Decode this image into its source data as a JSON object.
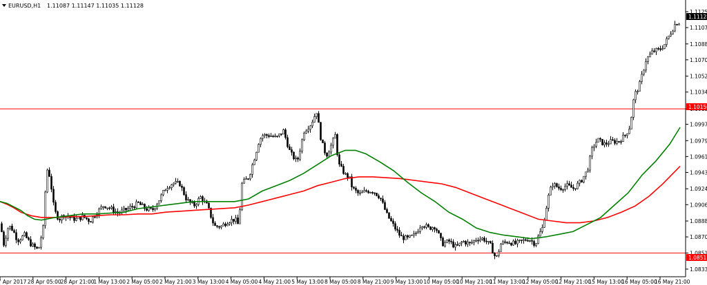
{
  "header": {
    "symbol": "EURUSD,H1",
    "ohlc": "1.11087 1.11147 1.11035 1.11128"
  },
  "price_axis": {
    "ticks": [
      "1.11250",
      "1.11070",
      "1.10885",
      "1.10705",
      "1.10520",
      "1.10340",
      "1.10150",
      "1.09975",
      "1.09790",
      "1.09610",
      "1.09430",
      "1.09245",
      "1.09065",
      "1.08880",
      "1.08700",
      "1.08517",
      "1.08335"
    ],
    "current_price_label": "1.11128",
    "level_labels": [
      "1.10150",
      "1.08517"
    ]
  },
  "time_axis": {
    "labels": [
      "27 Apr 2017",
      "28 Apr 05:00",
      "28 Apr 21:00",
      "1 May 13:00",
      "2 May 05:00",
      "2 May 21:00",
      "3 May 13:00",
      "4 May 05:00",
      "4 May 21:00",
      "5 May 13:00",
      "8 May 05:00",
      "8 May 21:00",
      "9 May 13:00",
      "10 May 05:00",
      "10 May 21:00",
      "11 May 13:00",
      "12 May 05:00",
      "12 May 21:00",
      "15 May 13:00",
      "16 May 05:00",
      "16 May 21:00"
    ]
  },
  "colors": {
    "background": "#ffffff",
    "candle_body": "#000000",
    "horizontal_level": "#ff0000",
    "ma_fast": "#008000",
    "ma_slow": "#ff0000",
    "price_label_bg": "#000000",
    "level_label_bg": "#ff0000"
  },
  "chart_data": {
    "type": "candlestick",
    "symbol": "EURUSD",
    "timeframe": "H1",
    "ylim": [
      1.0828,
      1.1132
    ],
    "horizontal_levels": [
      1.1015,
      1.08517
    ],
    "price_path": [
      [
        0,
        1.0885
      ],
      [
        5,
        1.0862
      ],
      [
        12,
        1.0883
      ],
      [
        18,
        1.0878
      ],
      [
        25,
        1.0866
      ],
      [
        35,
        1.0872
      ],
      [
        45,
        1.0861
      ],
      [
        55,
        1.0855
      ],
      [
        62,
        1.088
      ],
      [
        67,
        1.0948
      ],
      [
        72,
        1.0938
      ],
      [
        78,
        1.09
      ],
      [
        85,
        1.089
      ],
      [
        92,
        1.0895
      ],
      [
        100,
        1.0892
      ],
      [
        110,
        1.089
      ],
      [
        120,
        1.0893
      ],
      [
        130,
        1.0888
      ],
      [
        140,
        1.0898
      ],
      [
        150,
        1.0906
      ],
      [
        160,
        1.0902
      ],
      [
        170,
        1.0897
      ],
      [
        180,
        1.09
      ],
      [
        190,
        1.0904
      ],
      [
        200,
        1.0908
      ],
      [
        210,
        1.0902
      ],
      [
        220,
        1.09
      ],
      [
        230,
        1.0912
      ],
      [
        240,
        1.0926
      ],
      [
        250,
        1.0931
      ],
      [
        260,
        1.093
      ],
      [
        270,
        1.0912
      ],
      [
        280,
        1.0905
      ],
      [
        290,
        1.0915
      ],
      [
        300,
        1.0905
      ],
      [
        310,
        1.0882
      ],
      [
        320,
        1.0882
      ],
      [
        330,
        1.0888
      ],
      [
        340,
        1.089
      ],
      [
        345,
        1.0883
      ],
      [
        350,
        1.093
      ],
      [
        360,
        1.0938
      ],
      [
        370,
        1.0965
      ],
      [
        375,
        1.098
      ],
      [
        380,
        1.0985
      ],
      [
        390,
        1.0985
      ],
      [
        400,
        1.0982
      ],
      [
        410,
        1.099
      ],
      [
        420,
        1.0965
      ],
      [
        430,
        1.0955
      ],
      [
        440,
        1.099
      ],
      [
        450,
        1.0998
      ],
      [
        458,
        1.1012
      ],
      [
        465,
        1.0978
      ],
      [
        472,
        1.0962
      ],
      [
        480,
        1.0975
      ],
      [
        485,
        1.0985
      ],
      [
        490,
        1.0952
      ],
      [
        500,
        1.094
      ],
      [
        505,
        1.0938
      ],
      [
        510,
        1.0925
      ],
      [
        520,
        1.0918
      ],
      [
        530,
        1.0922
      ],
      [
        540,
        1.0922
      ],
      [
        550,
        1.0915
      ],
      [
        560,
        1.0895
      ],
      [
        570,
        1.0882
      ],
      [
        580,
        1.087
      ],
      [
        590,
        1.0868
      ],
      [
        600,
        1.0872
      ],
      [
        610,
        1.0885
      ],
      [
        620,
        1.088
      ],
      [
        630,
        1.0882
      ],
      [
        640,
        1.0862
      ],
      [
        650,
        1.0865
      ],
      [
        660,
        1.0858
      ],
      [
        670,
        1.0865
      ],
      [
        680,
        1.0862
      ],
      [
        690,
        1.0868
      ],
      [
        700,
        1.0868
      ],
      [
        710,
        1.086
      ],
      [
        718,
        1.0845
      ],
      [
        725,
        1.0862
      ],
      [
        735,
        1.0865
      ],
      [
        745,
        1.0862
      ],
      [
        755,
        1.0865
      ],
      [
        765,
        1.0868
      ],
      [
        775,
        1.0862
      ],
      [
        780,
        1.0872
      ],
      [
        785,
        1.088
      ],
      [
        790,
        1.09
      ],
      [
        795,
        1.092
      ],
      [
        800,
        1.093
      ],
      [
        810,
        1.0925
      ],
      [
        820,
        1.0928
      ],
      [
        830,
        1.0925
      ],
      [
        840,
        1.0932
      ],
      [
        850,
        1.0945
      ],
      [
        858,
        1.0972
      ],
      [
        865,
        1.098
      ],
      [
        875,
        1.0975
      ],
      [
        885,
        1.0978
      ],
      [
        895,
        1.0978
      ],
      [
        905,
        1.0985
      ],
      [
        912,
        1.0995
      ],
      [
        918,
        1.103
      ],
      [
        925,
        1.104
      ],
      [
        930,
        1.1055
      ],
      [
        935,
        1.107
      ],
      [
        945,
        1.108
      ],
      [
        955,
        1.1082
      ],
      [
        962,
        1.1088
      ],
      [
        970,
        1.11
      ],
      [
        978,
        1.1112
      ],
      [
        984,
        1.1113
      ]
    ],
    "ma_fast_path": [
      [
        0,
        1.091
      ],
      [
        10,
        1.0908
      ],
      [
        20,
        1.0904
      ],
      [
        30,
        1.09
      ],
      [
        40,
        1.0894
      ],
      [
        50,
        1.089
      ],
      [
        60,
        1.0889
      ],
      [
        80,
        1.0892
      ],
      [
        100,
        1.0894
      ],
      [
        120,
        1.0896
      ],
      [
        140,
        1.0896
      ],
      [
        160,
        1.0897
      ],
      [
        180,
        1.0898
      ],
      [
        200,
        1.0902
      ],
      [
        220,
        1.0904
      ],
      [
        240,
        1.0906
      ],
      [
        260,
        1.0908
      ],
      [
        280,
        1.091
      ],
      [
        300,
        1.091
      ],
      [
        320,
        1.091
      ],
      [
        340,
        1.091
      ],
      [
        360,
        1.0913
      ],
      [
        380,
        1.0922
      ],
      [
        400,
        1.0928
      ],
      [
        420,
        1.0934
      ],
      [
        440,
        1.0942
      ],
      [
        460,
        1.0952
      ],
      [
        480,
        1.0962
      ],
      [
        500,
        1.0968
      ],
      [
        515,
        1.0968
      ],
      [
        530,
        1.0964
      ],
      [
        550,
        1.0955
      ],
      [
        570,
        1.0945
      ],
      [
        590,
        1.0932
      ],
      [
        610,
        1.092
      ],
      [
        630,
        1.091
      ],
      [
        650,
        1.0898
      ],
      [
        670,
        1.089
      ],
      [
        690,
        1.088
      ],
      [
        710,
        1.0875
      ],
      [
        730,
        1.0872
      ],
      [
        750,
        1.087
      ],
      [
        770,
        1.0868
      ],
      [
        790,
        1.087
      ],
      [
        810,
        1.0873
      ],
      [
        830,
        1.0876
      ],
      [
        850,
        1.0884
      ],
      [
        870,
        1.0892
      ],
      [
        890,
        1.0906
      ],
      [
        910,
        1.092
      ],
      [
        930,
        1.094
      ],
      [
        950,
        1.0956
      ],
      [
        970,
        1.0975
      ],
      [
        985,
        1.0994
      ]
    ],
    "ma_slow_path": [
      [
        0,
        1.091
      ],
      [
        10,
        1.0907
      ],
      [
        20,
        1.0903
      ],
      [
        30,
        1.0898
      ],
      [
        45,
        1.0894
      ],
      [
        60,
        1.0892
      ],
      [
        80,
        1.0892
      ],
      [
        100,
        1.0893
      ],
      [
        120,
        1.0893
      ],
      [
        140,
        1.0894
      ],
      [
        160,
        1.0895
      ],
      [
        180,
        1.0895
      ],
      [
        200,
        1.0896
      ],
      [
        220,
        1.0896
      ],
      [
        240,
        1.0898
      ],
      [
        260,
        1.0899
      ],
      [
        280,
        1.09
      ],
      [
        300,
        1.0901
      ],
      [
        320,
        1.0902
      ],
      [
        340,
        1.0903
      ],
      [
        360,
        1.0906
      ],
      [
        380,
        1.091
      ],
      [
        400,
        1.0914
      ],
      [
        420,
        1.0918
      ],
      [
        440,
        1.0922
      ],
      [
        460,
        1.0928
      ],
      [
        480,
        1.0932
      ],
      [
        500,
        1.0936
      ],
      [
        520,
        1.0938
      ],
      [
        540,
        1.0938
      ],
      [
        560,
        1.0937
      ],
      [
        580,
        1.0936
      ],
      [
        600,
        1.0934
      ],
      [
        620,
        1.0932
      ],
      [
        640,
        1.093
      ],
      [
        660,
        1.0926
      ],
      [
        680,
        1.092
      ],
      [
        700,
        1.0914
      ],
      [
        720,
        1.0908
      ],
      [
        740,
        1.0902
      ],
      [
        760,
        1.0896
      ],
      [
        780,
        1.089
      ],
      [
        800,
        1.0888
      ],
      [
        820,
        1.0886
      ],
      [
        840,
        1.0886
      ],
      [
        860,
        1.0888
      ],
      [
        880,
        1.0892
      ],
      [
        900,
        1.0898
      ],
      [
        920,
        1.0905
      ],
      [
        940,
        1.0916
      ],
      [
        960,
        1.093
      ],
      [
        985,
        1.095
      ]
    ]
  }
}
